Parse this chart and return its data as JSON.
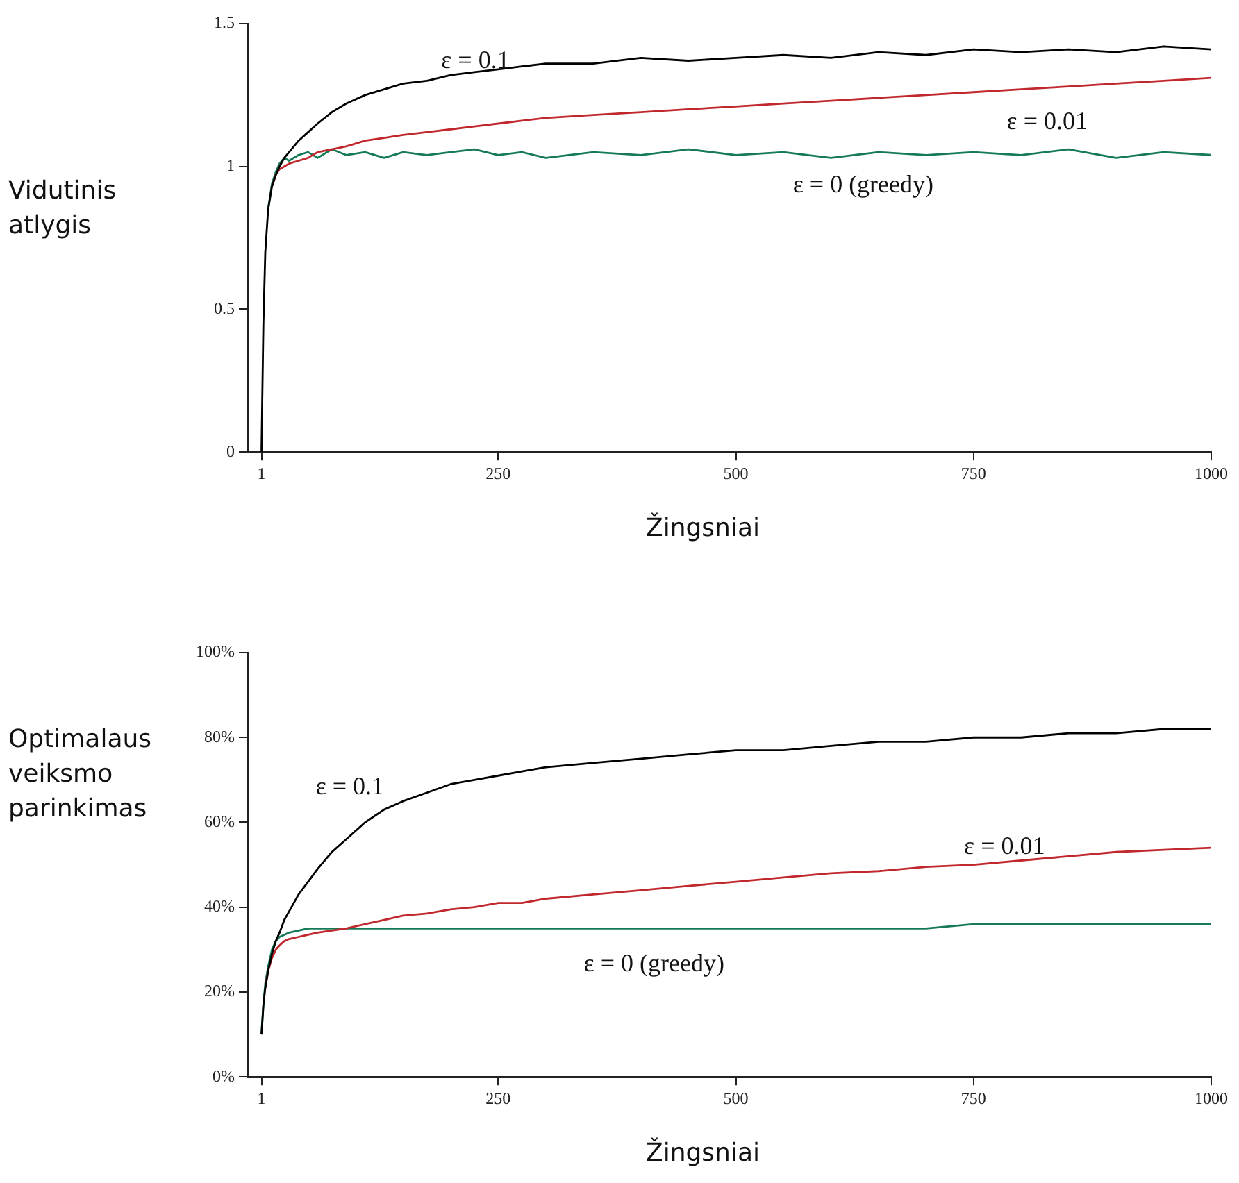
{
  "chart_data": [
    {
      "type": "line",
      "xlabel": "Žingsniai",
      "ylabel": "Vidutinis atlygis",
      "xlim": [
        -14,
        1000
      ],
      "xticks": [
        1,
        250,
        500,
        750,
        1000
      ],
      "ylim": [
        0,
        1.5
      ],
      "yticks": [
        0,
        0.5,
        1,
        1.5
      ],
      "grid": false,
      "legend": false,
      "marker": "none",
      "line_style": "solid",
      "x": [
        1,
        3,
        5,
        8,
        12,
        16,
        20,
        25,
        30,
        40,
        50,
        60,
        75,
        90,
        110,
        130,
        150,
        175,
        200,
        225,
        250,
        275,
        300,
        350,
        400,
        450,
        500,
        550,
        600,
        650,
        700,
        750,
        800,
        850,
        900,
        950,
        1000
      ],
      "series": [
        {
          "name": "ε = 0.1",
          "color": "#000000",
          "values": [
            0,
            0.45,
            0.7,
            0.85,
            0.93,
            0.97,
            1.0,
            1.03,
            1.05,
            1.09,
            1.12,
            1.15,
            1.19,
            1.22,
            1.25,
            1.27,
            1.29,
            1.3,
            1.32,
            1.33,
            1.34,
            1.35,
            1.36,
            1.36,
            1.38,
            1.37,
            1.38,
            1.39,
            1.38,
            1.4,
            1.39,
            1.41,
            1.4,
            1.41,
            1.4,
            1.42,
            1.41
          ]
        },
        {
          "name": "ε = 0.01",
          "color": "#c0282d",
          "values": [
            null,
            null,
            null,
            null,
            0.93,
            0.97,
            0.99,
            1.0,
            1.01,
            1.02,
            1.03,
            1.05,
            1.06,
            1.07,
            1.09,
            1.1,
            1.11,
            1.12,
            1.13,
            1.14,
            1.15,
            1.16,
            1.17,
            1.18,
            1.19,
            1.2,
            1.21,
            1.22,
            1.23,
            1.24,
            1.25,
            1.26,
            1.27,
            1.28,
            1.29,
            1.3,
            1.31
          ]
        },
        {
          "name": "ε = 0 (greedy)",
          "color": "#157a55",
          "values": [
            null,
            null,
            null,
            0.85,
            0.94,
            0.98,
            1.01,
            1.03,
            1.02,
            1.04,
            1.05,
            1.03,
            1.06,
            1.04,
            1.05,
            1.03,
            1.05,
            1.04,
            1.05,
            1.06,
            1.04,
            1.05,
            1.03,
            1.05,
            1.04,
            1.06,
            1.04,
            1.05,
            1.03,
            1.05,
            1.04,
            1.05,
            1.04,
            1.06,
            1.03,
            1.05,
            1.04
          ]
        }
      ]
    },
    {
      "type": "line",
      "xlabel": "Žingsniai",
      "ylabel": "Optimalaus veiksmo parinkimas",
      "xlim": [
        -14,
        1000
      ],
      "xticks": [
        1,
        250,
        500,
        750,
        1000
      ],
      "ylim": [
        0,
        100
      ],
      "yticks": [
        {
          "value": 0,
          "label": "0%"
        },
        {
          "value": 20,
          "label": "20%"
        },
        {
          "value": 40,
          "label": "40%"
        },
        {
          "value": 60,
          "label": "60%"
        },
        {
          "value": 80,
          "label": "80%"
        },
        {
          "value": 100,
          "label": "100%"
        }
      ],
      "grid": false,
      "legend": false,
      "marker": "none",
      "line_style": "solid",
      "x": [
        1,
        3,
        5,
        8,
        12,
        16,
        20,
        25,
        30,
        40,
        50,
        60,
        75,
        90,
        110,
        130,
        150,
        175,
        200,
        225,
        250,
        275,
        300,
        350,
        400,
        450,
        500,
        550,
        600,
        650,
        700,
        750,
        800,
        850,
        900,
        950,
        1000
      ],
      "series": [
        {
          "name": "ε = 0.1",
          "color": "#000000",
          "values": [
            10,
            17,
            21,
            25,
            29,
            32,
            34,
            37,
            39,
            43,
            46,
            49,
            53,
            56,
            60,
            63,
            65,
            67,
            69,
            70,
            71,
            72,
            73,
            74,
            75,
            76,
            77,
            77,
            78,
            79,
            79,
            80,
            80,
            81,
            81,
            82,
            82
          ]
        },
        {
          "name": "ε = 0.01",
          "color": "#c0282d",
          "values": [
            null,
            null,
            21,
            25,
            28,
            30,
            31,
            32,
            32.5,
            33,
            33.5,
            34,
            34.5,
            35,
            36,
            37,
            38,
            38.5,
            39.5,
            40,
            41,
            41,
            42,
            43,
            44,
            45,
            46,
            47,
            48,
            48.5,
            49.5,
            50,
            51,
            52,
            53,
            53.5,
            54
          ]
        },
        {
          "name": "ε = 0 (greedy)",
          "color": "#157a55",
          "values": [
            10,
            17,
            22,
            26,
            30,
            32,
            33,
            33.5,
            34,
            34.5,
            35,
            35,
            35,
            35,
            35,
            35,
            35,
            35,
            35,
            35,
            35,
            35,
            35,
            35,
            35,
            35,
            35,
            35,
            35,
            35,
            35,
            36,
            36,
            36,
            36,
            36,
            36
          ]
        }
      ]
    }
  ]
}
